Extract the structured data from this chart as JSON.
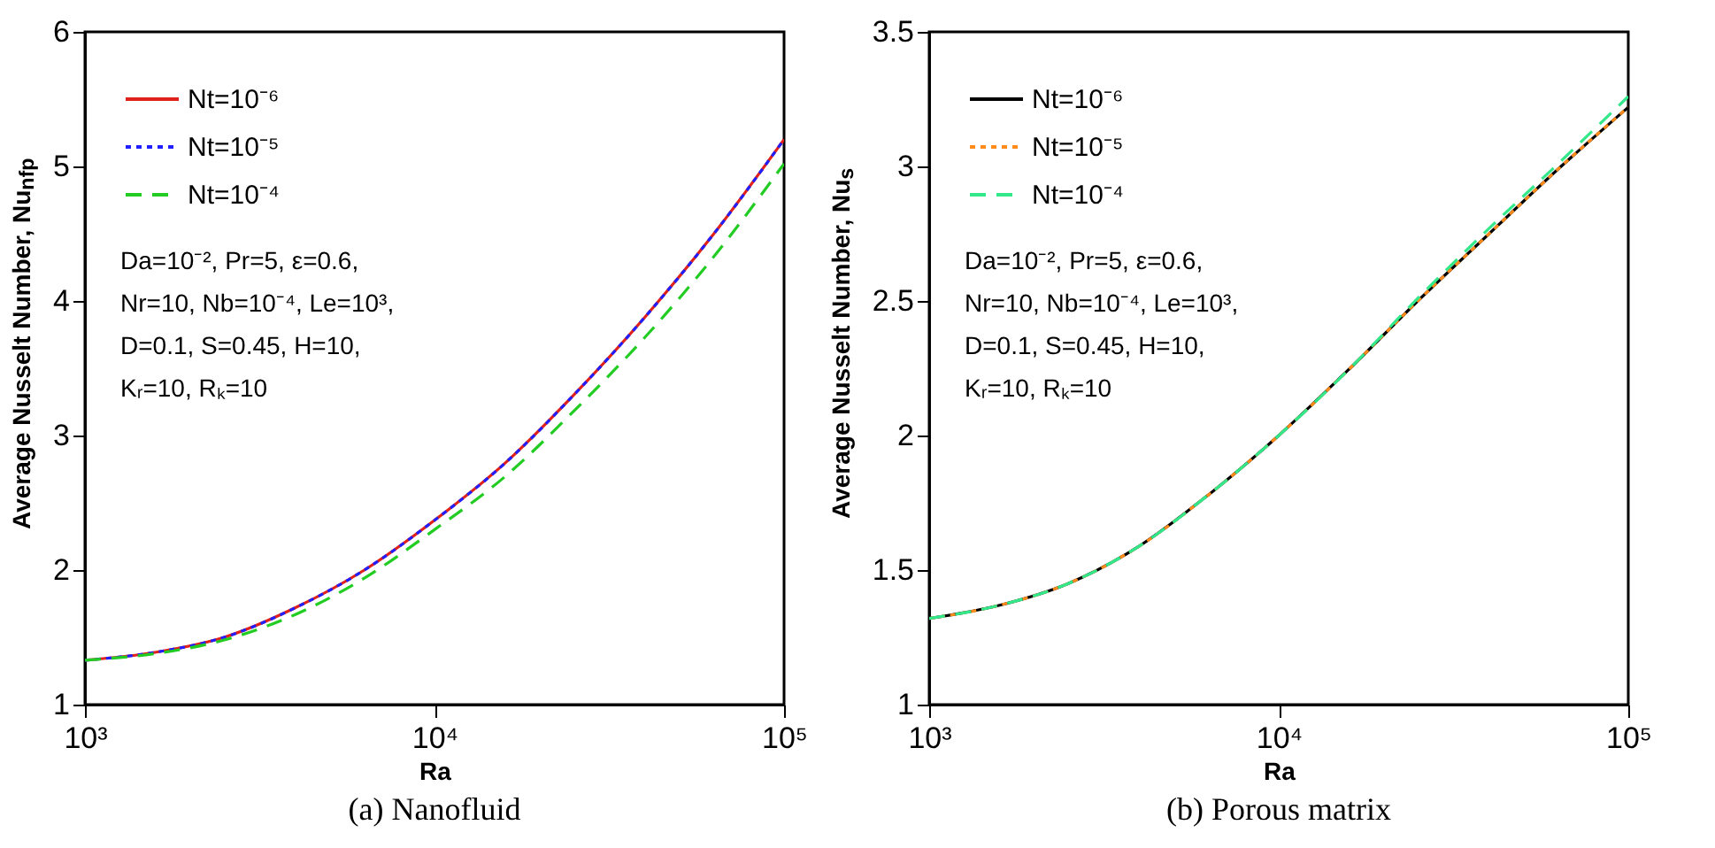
{
  "chart_data": [
    {
      "type": "line",
      "title": "(a) Nanofluid",
      "xlabel": "Ra",
      "ylabel": "Average Nusselt Number, Nu$_{nfp}$",
      "x": [
        1000,
        1600,
        2500,
        4000,
        6300,
        10000,
        16000,
        25000,
        40000,
        63000,
        100000
      ],
      "series": [
        {
          "name": "Nt=10⁻⁶",
          "color": "#e0201b",
          "line_style": "solid",
          "values": [
            1.33,
            1.39,
            1.5,
            1.72,
            2.0,
            2.37,
            2.8,
            3.3,
            3.88,
            4.5,
            5.2
          ]
        },
        {
          "name": "Nt=10⁻⁵",
          "color": "#1f1fff",
          "line_style": "dotted",
          "values": [
            1.33,
            1.39,
            1.5,
            1.72,
            2.0,
            2.37,
            2.8,
            3.3,
            3.88,
            4.5,
            5.2
          ]
        },
        {
          "name": "Nt=10⁻⁴",
          "color": "#22cc22",
          "line_style": "dashed",
          "values": [
            1.33,
            1.38,
            1.48,
            1.67,
            1.94,
            2.3,
            2.7,
            3.18,
            3.73,
            4.33,
            5.02
          ]
        }
      ],
      "log": "x",
      "xlim": [
        1000,
        100000
      ],
      "xticks": [
        {
          "value": 1000,
          "label": "10³"
        },
        {
          "value": 10000,
          "label": "10⁴"
        },
        {
          "value": 100000,
          "label": "10⁵"
        }
      ],
      "ylim": [
        1,
        6
      ],
      "yticks": [
        1,
        2,
        3,
        4,
        5,
        6
      ],
      "grid": false,
      "legend": "top left",
      "annotations": [
        "Da=10⁻², Pr=5, ε=0.6,",
        "Nr=10, Nb=10⁻⁴, Le=10³,",
        "D=0.1, S=0.45, H=10,",
        "Kᵣ=10, Rₖ=10"
      ]
    },
    {
      "type": "line",
      "title": "(b) Porous matrix",
      "xlabel": "Ra",
      "ylabel": "Average Nusselt Number, Nu$_{s}$",
      "x": [
        1000,
        1600,
        2500,
        4000,
        6300,
        10000,
        16000,
        25000,
        40000,
        63000,
        100000
      ],
      "series": [
        {
          "name": "Nt=10⁻⁶",
          "color": "#000000",
          "line_style": "solid",
          "values": [
            1.32,
            1.37,
            1.45,
            1.59,
            1.78,
            2.0,
            2.25,
            2.5,
            2.75,
            2.99,
            3.22
          ]
        },
        {
          "name": "Nt=10⁻⁵",
          "color": "#ff8c1a",
          "line_style": "dotted",
          "values": [
            1.32,
            1.37,
            1.45,
            1.59,
            1.78,
            2.0,
            2.25,
            2.5,
            2.75,
            2.99,
            3.22
          ]
        },
        {
          "name": "Nt=10⁻⁴",
          "color": "#33e88a",
          "line_style": "dashed",
          "values": [
            1.32,
            1.37,
            1.45,
            1.59,
            1.78,
            2.0,
            2.25,
            2.51,
            2.77,
            3.01,
            3.26
          ]
        }
      ],
      "log": "x",
      "xlim": [
        1000,
        100000
      ],
      "xticks": [
        {
          "value": 1000,
          "label": "10³"
        },
        {
          "value": 10000,
          "label": "10⁴"
        },
        {
          "value": 100000,
          "label": "10⁵"
        }
      ],
      "ylim": [
        1,
        3.5
      ],
      "yticks": [
        1,
        1.5,
        2,
        2.5,
        3,
        3.5
      ],
      "grid": false,
      "legend": "top left",
      "annotations": [
        "Da=10⁻², Pr=5, ε=0.6,",
        "Nr=10, Nb=10⁻⁴, Le=10³,",
        "D=0.1, S=0.45, H=10,",
        "Kᵣ=10, Rₖ=10"
      ]
    }
  ]
}
